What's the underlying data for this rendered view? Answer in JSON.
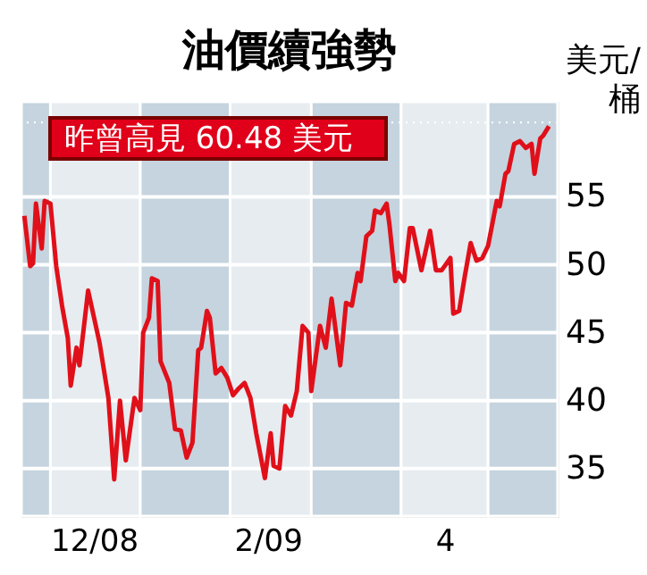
{
  "chart_data": {
    "type": "line",
    "title": "油價續強勢",
    "ylabel": "美元/桶",
    "annotations": [
      "昨曾高見 60.48 美元"
    ],
    "x": [
      "2008-11-22",
      "2008-11-24",
      "2008-11-25",
      "2008-11-26",
      "2008-11-28",
      "2008-11-29",
      "2008-12-01",
      "2008-12-03",
      "2008-12-05",
      "2008-12-07",
      "2008-12-08",
      "2008-12-10",
      "2008-12-11",
      "2008-12-14",
      "2008-12-18",
      "2008-12-21",
      "2008-12-23",
      "2008-12-25",
      "2008-12-27",
      "2008-12-30",
      "2009-01-01",
      "2009-01-02",
      "2009-01-04",
      "2009-01-05",
      "2009-01-07",
      "2009-01-08",
      "2009-01-11",
      "2009-01-13",
      "2009-01-15",
      "2009-01-17",
      "2009-01-19",
      "2009-01-21",
      "2009-01-22",
      "2009-01-24",
      "2009-01-25",
      "2009-01-27",
      "2009-01-29",
      "2009-01-31",
      "2009-02-02",
      "2009-02-04",
      "2009-02-06",
      "2009-02-08",
      "2009-02-10",
      "2009-02-13",
      "2009-02-15",
      "2009-02-16",
      "2009-02-18",
      "2009-02-20",
      "2009-02-22",
      "2009-02-24",
      "2009-02-26",
      "2009-02-28",
      "2009-03-01",
      "2009-03-04",
      "2009-03-06",
      "2009-03-08",
      "2009-03-11",
      "2009-03-13",
      "2009-03-15",
      "2009-03-17",
      "2009-03-18",
      "2009-03-20",
      "2009-03-22",
      "2009-03-23",
      "2009-03-25",
      "2009-03-27",
      "2009-03-28",
      "2009-03-30",
      "2009-03-31",
      "2009-04-02",
      "2009-04-04",
      "2009-04-05",
      "2009-04-08",
      "2009-04-11",
      "2009-04-13",
      "2009-04-15",
      "2009-04-18",
      "2009-04-19",
      "2009-04-21",
      "2009-04-23",
      "2009-04-25",
      "2009-04-27",
      "2009-04-29",
      "2009-05-01",
      "2009-05-04",
      "2009-05-05",
      "2009-05-07",
      "2009-05-08",
      "2009-05-10",
      "2009-05-12",
      "2009-05-14",
      "2009-05-16",
      "2009-05-17",
      "2009-05-19",
      "2009-05-20",
      "2009-05-22"
    ],
    "series": [
      {
        "color": "#e0101a",
        "values": [
          53.6,
          49.9,
          50.1,
          54.5,
          51.2,
          54.7,
          54.5,
          49.9,
          47.0,
          44.6,
          41.1,
          43.9,
          42.6,
          48.1,
          44.2,
          40.2,
          34.2,
          40.0,
          35.6,
          40.2,
          39.3,
          45.0,
          46.1,
          49.0,
          48.8,
          42.9,
          41.3,
          37.9,
          37.8,
          35.8,
          36.9,
          43.7,
          43.9,
          46.6,
          46.1,
          42.0,
          42.4,
          41.7,
          40.4,
          40.9,
          41.3,
          40.2,
          37.6,
          34.3,
          37.6,
          35.2,
          35.0,
          39.6,
          38.9,
          40.7,
          45.5,
          45.0,
          40.7,
          45.5,
          43.9,
          47.5,
          42.6,
          47.2,
          47.0,
          49.4,
          48.8,
          52.1,
          52.5,
          54.0,
          53.8,
          54.5,
          52.9,
          48.8,
          49.4,
          48.8,
          52.7,
          52.7,
          49.6,
          52.5,
          49.6,
          49.6,
          50.5,
          46.4,
          46.6,
          49.2,
          51.6,
          50.3,
          50.5,
          51.4,
          54.7,
          54.3,
          56.7,
          56.9,
          58.9,
          59.1,
          58.6,
          58.9,
          56.7,
          59.3,
          59.5,
          60.2
        ]
      }
    ],
    "xlim": [
      "2008-11-21",
      "2009-05-25"
    ],
    "xticks": [
      {
        "value": "2008-12-16",
        "label": "12/08"
      },
      {
        "value": "2009-02-14",
        "label": "2/09"
      },
      {
        "value": "2009-04-16",
        "label": "4"
      }
    ],
    "ylim": [
      31.5,
      62
    ],
    "yticks": [
      35,
      40,
      45,
      50,
      55
    ],
    "ref_lines": [
      {
        "axis": "y",
        "value": 60.48,
        "color": "#ffffff",
        "line_style": "dotted"
      }
    ],
    "bands": [
      {
        "axis": "x",
        "from": "2008-11-21",
        "to": "2008-12-01",
        "color": "#c5d4de"
      },
      {
        "axis": "x",
        "from": "2008-12-01",
        "to": "2009-01-01",
        "color": "#e6ecf0"
      },
      {
        "axis": "x",
        "from": "2009-01-01",
        "to": "2009-02-01",
        "color": "#c5d4de"
      },
      {
        "axis": "x",
        "from": "2009-02-01",
        "to": "2009-03-01",
        "color": "#e6ecf0"
      },
      {
        "axis": "x",
        "from": "2009-03-01",
        "to": "2009-04-01",
        "color": "#c5d4de"
      },
      {
        "axis": "x",
        "from": "2009-04-01",
        "to": "2009-05-01",
        "color": "#e6ecf0"
      },
      {
        "axis": "x",
        "from": "2009-05-01",
        "to": "2009-05-25",
        "color": "#c5d4de"
      }
    ],
    "grid": "y",
    "marker": "none",
    "line_style": "solid"
  }
}
